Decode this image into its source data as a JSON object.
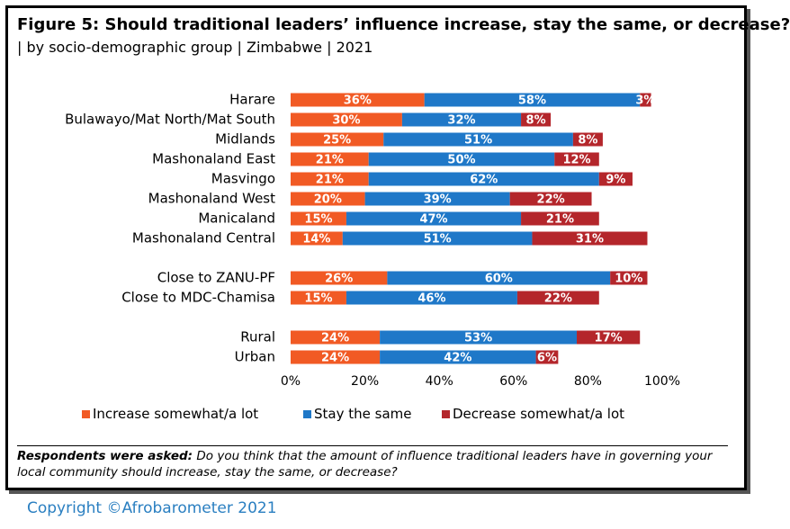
{
  "title": "Figure 5: Should traditional leaders’ influence increase, stay the same, or decrease?",
  "subtitle": "| by socio-demographic group | Zimbabwe | 2021",
  "note_lead": "Respondents were asked:",
  "note_text": " Do you think that the amount of influence traditional leaders have in governing your local community should increase, stay the same, or decrease?",
  "copyright": "Copyright ©Afrobarometer 2021",
  "colors": {
    "increase": "#f15a24",
    "same": "#1f78c8",
    "decrease": "#b4262b"
  },
  "chart_data": {
    "type": "bar",
    "orientation": "horizontal",
    "stacked": true,
    "categories": [
      "Harare",
      "Bulawayo/Mat North/Mat South",
      "Midlands",
      "Mashonaland East",
      "Masvingo",
      "Mashonaland West",
      "Manicaland",
      "Mashonaland Central",
      "Close to ZANU-PF",
      "Close to MDC-Chamisa",
      "Rural",
      "Urban"
    ],
    "series": [
      {
        "name": "Increase somewhat/a lot",
        "values": [
          36,
          30,
          25,
          21,
          21,
          20,
          15,
          14,
          26,
          15,
          24,
          24
        ]
      },
      {
        "name": "Stay the same",
        "values": [
          58,
          32,
          51,
          50,
          62,
          39,
          47,
          51,
          60,
          46,
          53,
          42
        ]
      },
      {
        "name": "Decrease somewhat/a lot",
        "values": [
          3,
          8,
          8,
          12,
          9,
          22,
          21,
          31,
          10,
          22,
          17,
          6
        ]
      }
    ],
    "xlim": [
      0,
      100
    ],
    "xticks": [
      "0%",
      "20%",
      "40%",
      "60%",
      "80%",
      "100%"
    ],
    "legend_position": "bottom",
    "grid": false
  }
}
